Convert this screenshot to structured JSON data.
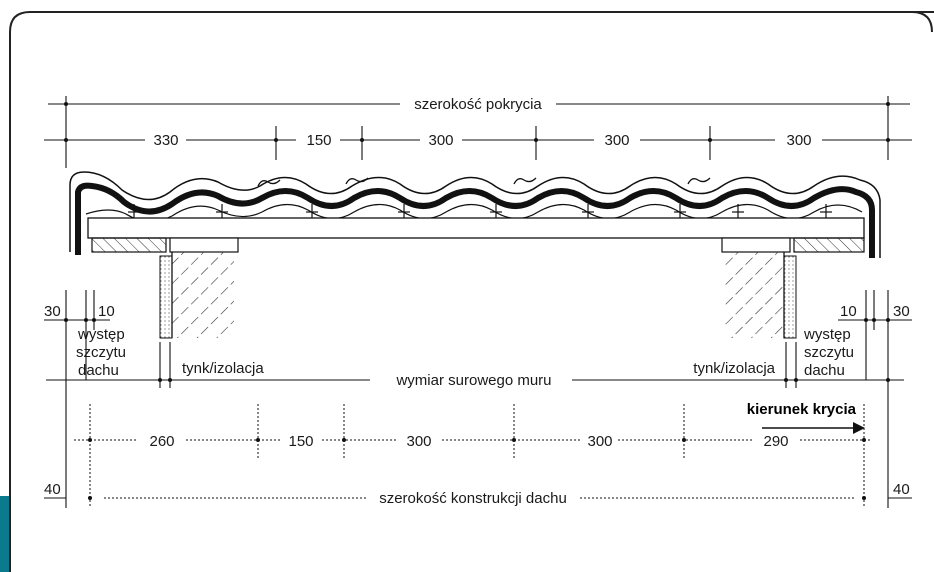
{
  "colors": {
    "frame": "#222222",
    "tab": "#0b7a8c",
    "line": "#111111"
  },
  "top": {
    "total_label": "szerokość pokrycia",
    "spans": [
      "330",
      "150",
      "300",
      "300",
      "300"
    ]
  },
  "left_side": {
    "dim_30": "30",
    "dim_10": "10",
    "overhang_lines": [
      "występ",
      "szczytu",
      "dachu"
    ],
    "plaster_label": "tynk/izolacja",
    "dim_40": "40"
  },
  "right_side": {
    "dim_10": "10",
    "dim_30": "30",
    "overhang_lines": [
      "występ",
      "szczytu",
      "dachu"
    ],
    "plaster_label": "tynk/izolacja",
    "dim_40": "40"
  },
  "middle": {
    "raw_wall_label": "wymiar surowego muru",
    "direction_label": "kierunek krycia"
  },
  "bottom": {
    "spans": [
      "260",
      "150",
      "300",
      "300",
      "290"
    ],
    "total_label": "szerokość konstrukcji dachu"
  }
}
